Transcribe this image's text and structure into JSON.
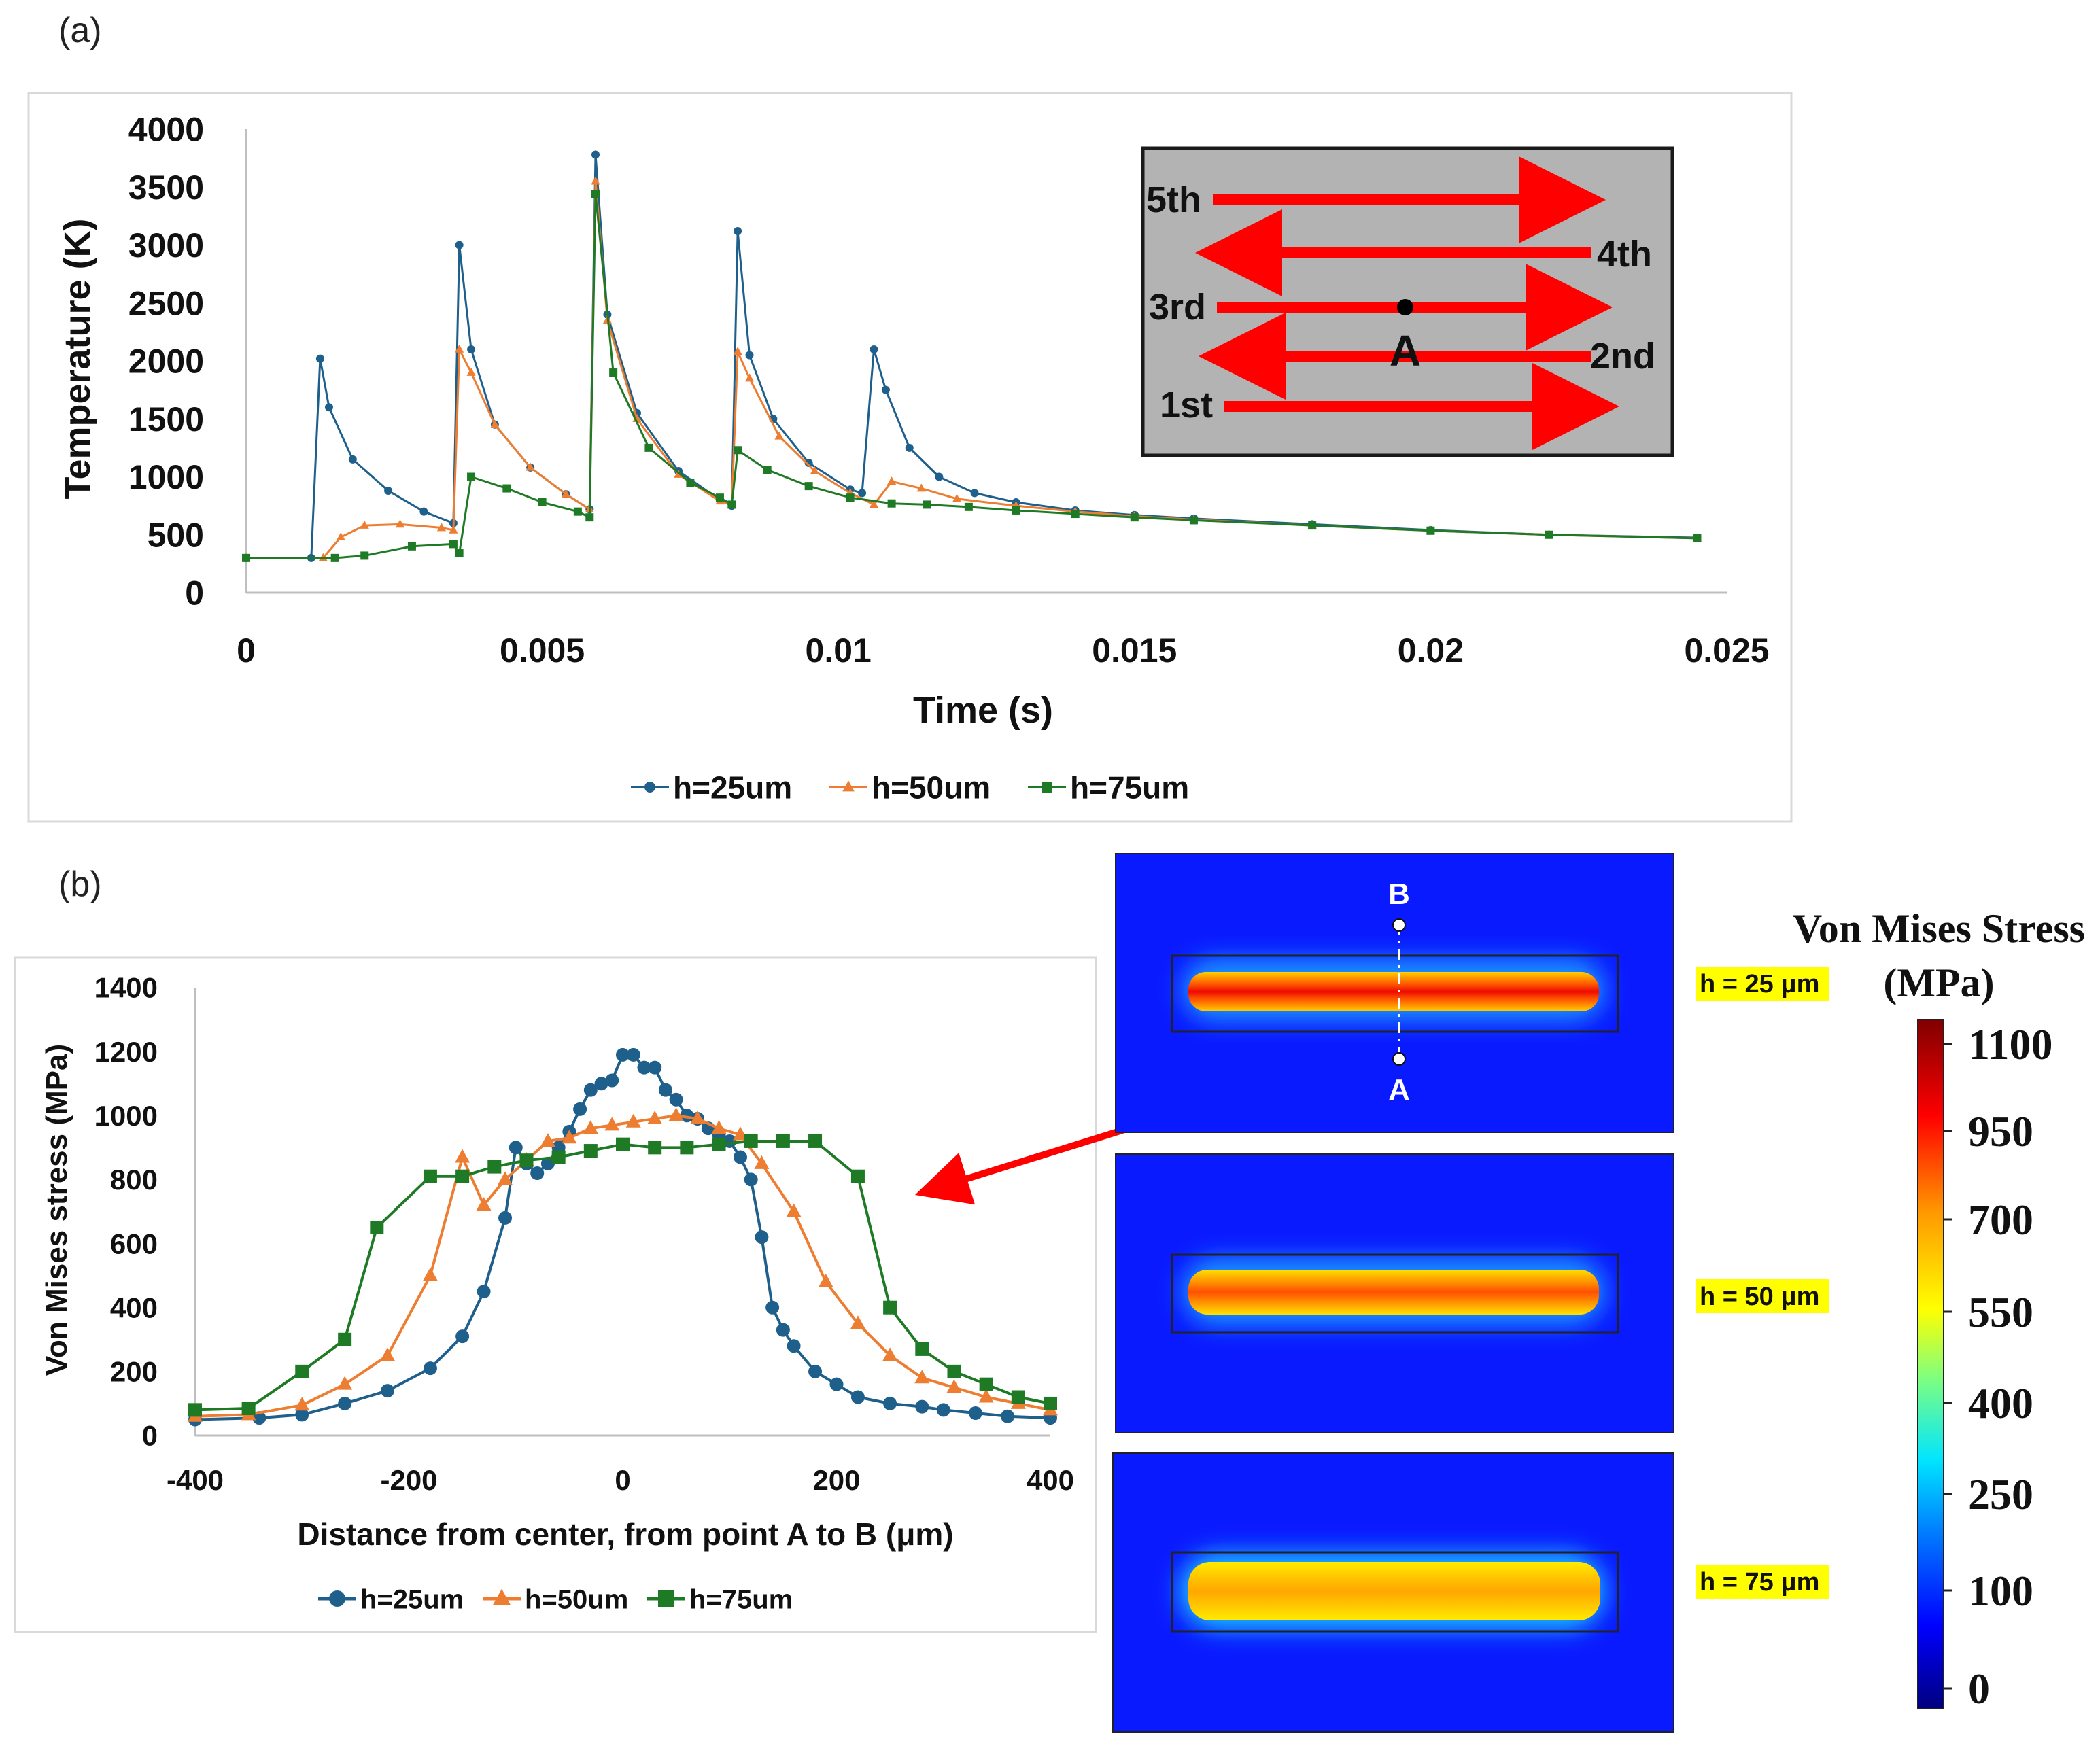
{
  "panel_a": {
    "label": "(a)",
    "chart_data": {
      "type": "line",
      "title": "",
      "xlabel": "Time (s)",
      "ylabel": "Temperature (K)",
      "xlim": [
        0,
        0.025
      ],
      "ylim": [
        0,
        4000
      ],
      "x_ticks": [
        "0",
        "0.005",
        "0.01",
        "0.015",
        "0.02",
        "0.025"
      ],
      "y_ticks": [
        "0",
        "500",
        "1000",
        "1500",
        "2000",
        "2500",
        "3000",
        "3500",
        "4000"
      ],
      "legend_position": "bottom",
      "series": [
        {
          "name": "h=25um",
          "color": "#1f5f8b",
          "marker": "circle",
          "x": [
            0,
            0.0011,
            0.00125,
            0.0014,
            0.0018,
            0.0024,
            0.003,
            0.0035,
            0.0036,
            0.0038,
            0.0042,
            0.0048,
            0.0054,
            0.0058,
            0.0059,
            0.0061,
            0.0066,
            0.0073,
            0.008,
            0.0082,
            0.0083,
            0.0085,
            0.0089,
            0.0095,
            0.0102,
            0.0104,
            0.0106,
            0.0108,
            0.0112,
            0.0117,
            0.0123,
            0.013,
            0.014,
            0.015,
            0.016,
            0.018,
            0.02,
            0.022,
            0.0245
          ],
          "y": [
            300,
            300,
            2020,
            1600,
            1150,
            880,
            700,
            600,
            3000,
            2100,
            1450,
            1080,
            850,
            720,
            3780,
            2400,
            1550,
            1050,
            800,
            750,
            3120,
            2050,
            1500,
            1120,
            890,
            860,
            2100,
            1750,
            1250,
            1000,
            860,
            780,
            710,
            670,
            640,
            590,
            540,
            500,
            475
          ]
        },
        {
          "name": "h=50um",
          "color": "#ed7d31",
          "marker": "triangle",
          "x": [
            0,
            0.0013,
            0.0016,
            0.002,
            0.0026,
            0.0033,
            0.0035,
            0.0036,
            0.0038,
            0.0042,
            0.0048,
            0.0054,
            0.0058,
            0.0059,
            0.0061,
            0.0066,
            0.0073,
            0.008,
            0.0082,
            0.0083,
            0.0085,
            0.009,
            0.0096,
            0.0102,
            0.0106,
            0.0109,
            0.0114,
            0.012,
            0.013,
            0.014,
            0.015,
            0.016,
            0.018,
            0.02,
            0.022,
            0.0245
          ],
          "y": [
            300,
            300,
            480,
            580,
            590,
            560,
            540,
            2100,
            1900,
            1450,
            1080,
            850,
            720,
            3550,
            2350,
            1500,
            1020,
            790,
            760,
            2080,
            1850,
            1350,
            1050,
            860,
            760,
            960,
            900,
            810,
            750,
            700,
            660,
            630,
            580,
            535,
            500,
            470
          ]
        },
        {
          "name": "h=75um",
          "color": "#1e7a24",
          "marker": "square",
          "x": [
            0,
            0.0015,
            0.002,
            0.0028,
            0.0035,
            0.0036,
            0.0038,
            0.0044,
            0.005,
            0.0056,
            0.0058,
            0.0059,
            0.0062,
            0.0068,
            0.0075,
            0.008,
            0.0082,
            0.0083,
            0.0088,
            0.0095,
            0.0102,
            0.0109,
            0.0115,
            0.0122,
            0.013,
            0.014,
            0.015,
            0.016,
            0.018,
            0.02,
            0.022,
            0.0245
          ],
          "y": [
            300,
            300,
            320,
            400,
            420,
            340,
            1000,
            900,
            780,
            700,
            650,
            3440,
            1900,
            1250,
            950,
            820,
            760,
            1230,
            1060,
            920,
            820,
            770,
            760,
            740,
            710,
            680,
            650,
            625,
            580,
            535,
            500,
            470
          ]
        }
      ]
    },
    "inset": {
      "passes": [
        "5th",
        "4th",
        "3rd",
        "2nd",
        "1st"
      ],
      "point": "A"
    }
  },
  "panel_b": {
    "label": "(b)",
    "chart_data": {
      "type": "line",
      "title": "",
      "xlabel": "Distance from center, from point A to B (μm)",
      "ylabel": "Von Mises stress (MPa)",
      "xlim": [
        -400,
        400
      ],
      "ylim": [
        0,
        1400
      ],
      "x_ticks": [
        "-400",
        "-200",
        "0",
        "200",
        "400"
      ],
      "y_ticks": [
        "0",
        "200",
        "400",
        "600",
        "800",
        "1000",
        "1200",
        "1400"
      ],
      "legend_position": "bottom",
      "series": [
        {
          "name": "h=25um",
          "color": "#1f5f8b",
          "marker": "circle",
          "x": [
            -400,
            -340,
            -300,
            -260,
            -220,
            -180,
            -150,
            -130,
            -110,
            -100,
            -90,
            -80,
            -70,
            -60,
            -50,
            -40,
            -30,
            -20,
            -10,
            0,
            10,
            20,
            30,
            40,
            50,
            60,
            70,
            80,
            90,
            100,
            110,
            120,
            130,
            140,
            150,
            160,
            180,
            200,
            220,
            250,
            280,
            300,
            330,
            360,
            400
          ],
          "y": [
            50,
            55,
            65,
            100,
            140,
            210,
            310,
            450,
            680,
            900,
            850,
            820,
            850,
            900,
            950,
            1020,
            1080,
            1100,
            1110,
            1190,
            1190,
            1150,
            1150,
            1080,
            1050,
            1000,
            990,
            960,
            940,
            920,
            870,
            800,
            620,
            400,
            330,
            280,
            200,
            160,
            120,
            100,
            90,
            80,
            70,
            60,
            55
          ]
        },
        {
          "name": "h=50um",
          "color": "#ed7d31",
          "marker": "triangle",
          "x": [
            -400,
            -350,
            -300,
            -260,
            -220,
            -180,
            -150,
            -130,
            -110,
            -90,
            -70,
            -50,
            -30,
            -10,
            10,
            30,
            50,
            70,
            90,
            110,
            130,
            160,
            190,
            220,
            250,
            280,
            310,
            340,
            370,
            400
          ],
          "y": [
            60,
            65,
            95,
            160,
            250,
            500,
            870,
            720,
            800,
            860,
            920,
            930,
            960,
            970,
            980,
            990,
            1000,
            990,
            960,
            940,
            850,
            700,
            480,
            350,
            250,
            180,
            150,
            120,
            100,
            80
          ]
        },
        {
          "name": "h=75um",
          "color": "#1e7a24",
          "marker": "square",
          "x": [
            -400,
            -350,
            -300,
            -260,
            -230,
            -180,
            -150,
            -120,
            -90,
            -60,
            -30,
            0,
            30,
            60,
            90,
            120,
            150,
            180,
            220,
            250,
            280,
            310,
            340,
            370,
            400
          ],
          "y": [
            80,
            85,
            200,
            300,
            650,
            810,
            810,
            840,
            860,
            870,
            890,
            910,
            900,
            900,
            910,
            920,
            920,
            920,
            810,
            400,
            270,
            200,
            160,
            120,
            100
          ]
        }
      ]
    },
    "stress_maps": {
      "labels": [
        "h = 25 μm",
        "h = 50 μm",
        "h = 75 μm"
      ],
      "point_top": "B",
      "point_bottom": "A"
    },
    "colorbar": {
      "title_line1": "Von Mises Stress",
      "title_line2": "(MPa)",
      "ticks": [
        "1100",
        "950",
        "700",
        "550",
        "400",
        "250",
        "100",
        "0"
      ]
    }
  }
}
